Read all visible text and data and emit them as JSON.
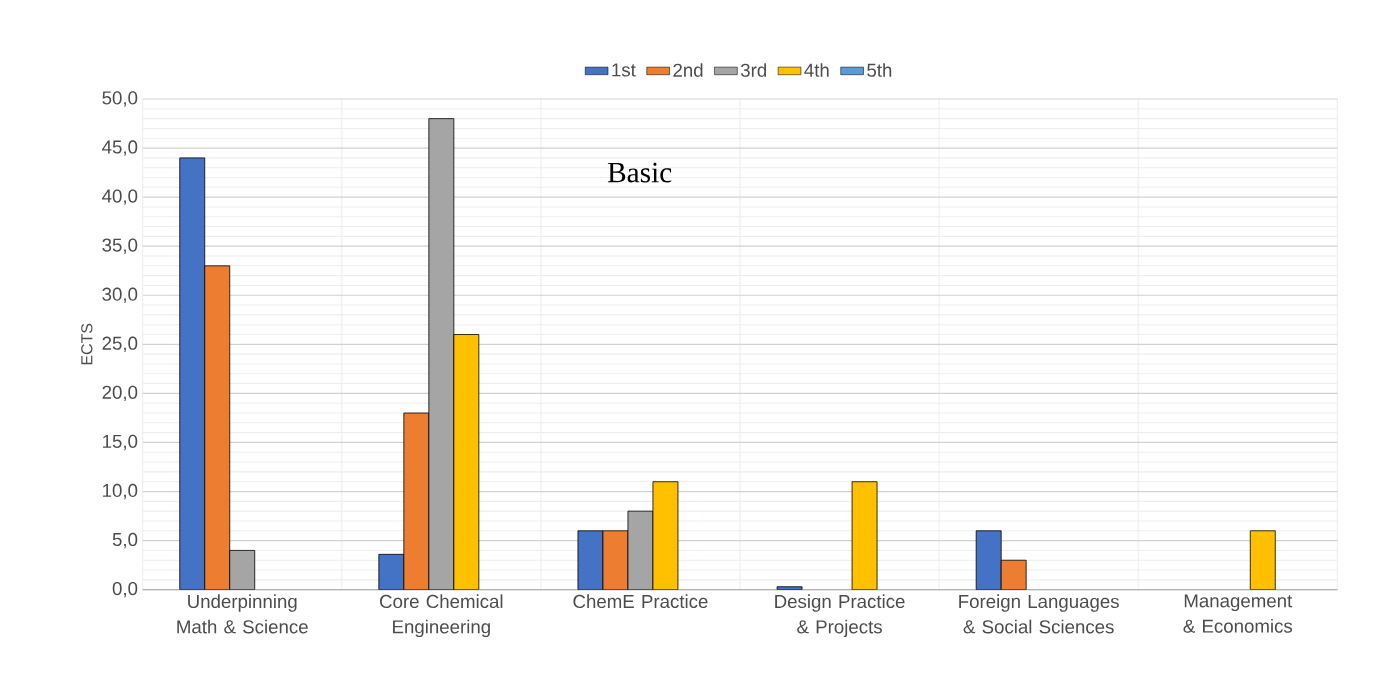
{
  "chart_data": {
    "type": "bar",
    "ylabel": "ECTS",
    "categories": [
      "Underpinning Math & Science",
      "Core Chemical Engineering",
      "ChemE Practice",
      "Design Practice & Projects",
      "Foreign Languages & Social Sciences",
      "Management & Economics"
    ],
    "series": [
      {
        "name": "1st",
        "color": "#4472c4",
        "values": [
          44,
          3.6,
          6,
          0.3,
          6,
          null
        ]
      },
      {
        "name": "2nd",
        "color": "#ed7d31",
        "values": [
          33,
          18,
          6,
          null,
          3,
          null
        ]
      },
      {
        "name": "3rd",
        "color": "#a5a5a5",
        "values": [
          4,
          48,
          8,
          null,
          null,
          null
        ]
      },
      {
        "name": "4th",
        "color": "#ffc000",
        "values": [
          null,
          26,
          11,
          11,
          null,
          6
        ]
      },
      {
        "name": "5th",
        "color": "#5b9bd5",
        "values": [
          null,
          null,
          null,
          null,
          null,
          null
        ]
      }
    ],
    "ylim": [
      0,
      50
    ],
    "yticks": [
      {
        "value": 0,
        "label": "0,0"
      },
      {
        "value": 5,
        "label": "5,0"
      },
      {
        "value": 10,
        "label": "10,0"
      },
      {
        "value": 15,
        "label": "15,0"
      },
      {
        "value": 20,
        "label": "20,0"
      },
      {
        "value": 25,
        "label": "25,0"
      },
      {
        "value": 30,
        "label": "30,0"
      },
      {
        "value": 35,
        "label": "35,0"
      },
      {
        "value": 40,
        "label": "40,0"
      },
      {
        "value": 45,
        "label": "45,0"
      },
      {
        "value": 50,
        "label": "50,0"
      }
    ],
    "annotations": [
      "Basic"
    ],
    "grid": true,
    "legend": "top"
  }
}
